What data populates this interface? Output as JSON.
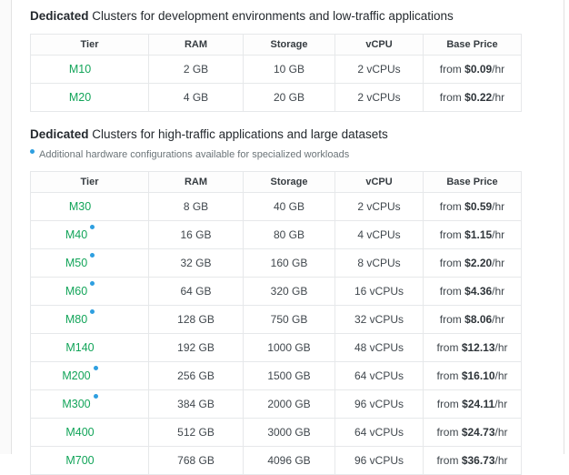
{
  "colors": {
    "tier_green": "#12a459",
    "tier_bg_mint": "#ecf9f2",
    "footnote_dot_blue": "#2e9fe0",
    "price_bg_gray": "#f4f5f6",
    "table_border": "#e6e8ea"
  },
  "sections": [
    {
      "heading_bold": "Dedicated",
      "heading_rest": " Clusters for development environments and low-traffic applications",
      "table": {
        "columns": [
          "Tier",
          "RAM",
          "Storage",
          "vCPU",
          "Base Price"
        ],
        "rows": [
          {
            "tier": "M10",
            "has_dot": false,
            "ram": "2 GB",
            "storage": "10 GB",
            "vcpu": "2 vCPUs",
            "price": {
              "prefix": "from",
              "amount": "$0.09",
              "suffix": "/hr"
            }
          },
          {
            "tier": "M20",
            "has_dot": false,
            "ram": "4 GB",
            "storage": "20 GB",
            "vcpu": "2 vCPUs",
            "price": {
              "prefix": "from",
              "amount": "$0.22",
              "suffix": "/hr"
            }
          }
        ]
      }
    },
    {
      "heading_bold": "Dedicated",
      "heading_rest": " Clusters for high-traffic applications and large datasets",
      "note": "Additional hardware configurations available for specialized workloads",
      "table": {
        "columns": [
          "Tier",
          "RAM",
          "Storage",
          "vCPU",
          "Base Price"
        ],
        "rows": [
          {
            "tier": "M30",
            "has_dot": false,
            "ram": "8 GB",
            "storage": "40 GB",
            "vcpu": "2 vCPUs",
            "price": {
              "prefix": "from",
              "amount": "$0.59",
              "suffix": "/hr"
            }
          },
          {
            "tier": "M40",
            "has_dot": true,
            "ram": "16 GB",
            "storage": "80 GB",
            "vcpu": "4 vCPUs",
            "price": {
              "prefix": "from",
              "amount": "$1.15",
              "suffix": "/hr"
            }
          },
          {
            "tier": "M50",
            "has_dot": true,
            "ram": "32 GB",
            "storage": "160 GB",
            "vcpu": "8 vCPUs",
            "price": {
              "prefix": "from",
              "amount": "$2.20",
              "suffix": "/hr"
            }
          },
          {
            "tier": "M60",
            "has_dot": true,
            "ram": "64 GB",
            "storage": "320 GB",
            "vcpu": "16 vCPUs",
            "price": {
              "prefix": "from",
              "amount": "$4.36",
              "suffix": "/hr"
            }
          },
          {
            "tier": "M80",
            "has_dot": true,
            "ram": "128 GB",
            "storage": "750 GB",
            "vcpu": "32 vCPUs",
            "price": {
              "prefix": "from",
              "amount": "$8.06",
              "suffix": "/hr"
            }
          },
          {
            "tier": "M140",
            "has_dot": false,
            "ram": "192 GB",
            "storage": "1000 GB",
            "vcpu": "48 vCPUs",
            "price": {
              "prefix": "from",
              "amount": "$12.13",
              "suffix": "/hr"
            }
          },
          {
            "tier": "M200",
            "has_dot": true,
            "ram": "256 GB",
            "storage": "1500 GB",
            "vcpu": "64 vCPUs",
            "price": {
              "prefix": "from",
              "amount": "$16.10",
              "suffix": "/hr"
            }
          },
          {
            "tier": "M300",
            "has_dot": true,
            "ram": "384 GB",
            "storage": "2000 GB",
            "vcpu": "96 vCPUs",
            "price": {
              "prefix": "from",
              "amount": "$24.11",
              "suffix": "/hr"
            }
          },
          {
            "tier": "M400",
            "has_dot": false,
            "ram": "512 GB",
            "storage": "3000 GB",
            "vcpu": "64 vCPUs",
            "price": {
              "prefix": "from",
              "amount": "$24.73",
              "suffix": "/hr"
            }
          },
          {
            "tier": "M700",
            "has_dot": false,
            "ram": "768 GB",
            "storage": "4096 GB",
            "vcpu": "96 vCPUs",
            "price": {
              "prefix": "from",
              "amount": "$36.73",
              "suffix": "/hr"
            }
          }
        ]
      }
    }
  ]
}
